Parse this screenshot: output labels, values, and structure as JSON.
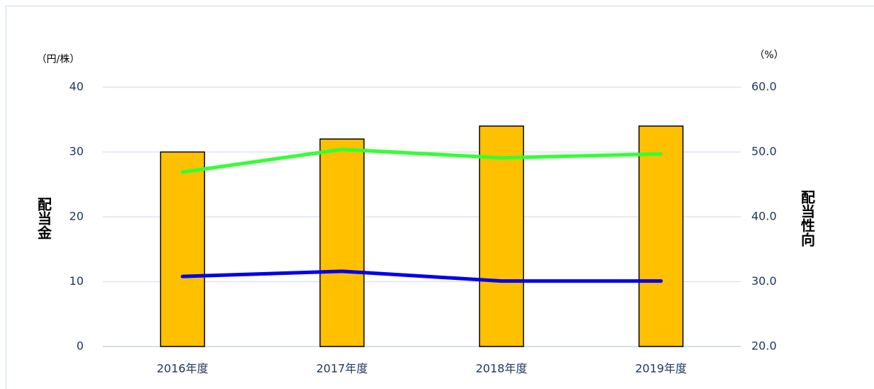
{
  "chart_data": {
    "type": "bar_line",
    "y_unit": "（円/株）",
    "y2_unit": "（%）",
    "ylabel": "配当金",
    "y2label": "配当性向",
    "categories": [
      "2016年度",
      "2017年度",
      "2018年度",
      "2019年度"
    ],
    "series": [
      {
        "type": "bar",
        "color": "#ffc000",
        "values": [
          30,
          32,
          34,
          34
        ]
      },
      {
        "type": "line",
        "axis": "y2",
        "color": "#33ff33",
        "values": [
          46.9,
          50.4,
          49.1,
          49.7
        ]
      },
      {
        "type": "line",
        "axis": "y2",
        "color": "#0000ee",
        "values": [
          30.8,
          31.6,
          30.1,
          30.1
        ]
      }
    ],
    "ylim": [
      0,
      40
    ],
    "yticks": [
      0,
      10,
      20,
      30,
      40
    ],
    "y2lim": [
      20,
      60
    ],
    "y2ticks": [
      {
        "value": 20,
        "label": "20.0"
      },
      {
        "value": 30,
        "label": "30.0"
      },
      {
        "value": 40,
        "label": "40.0"
      },
      {
        "value": 50,
        "label": "50.0"
      },
      {
        "value": 60,
        "label": "60.0"
      }
    ],
    "grid": true
  }
}
